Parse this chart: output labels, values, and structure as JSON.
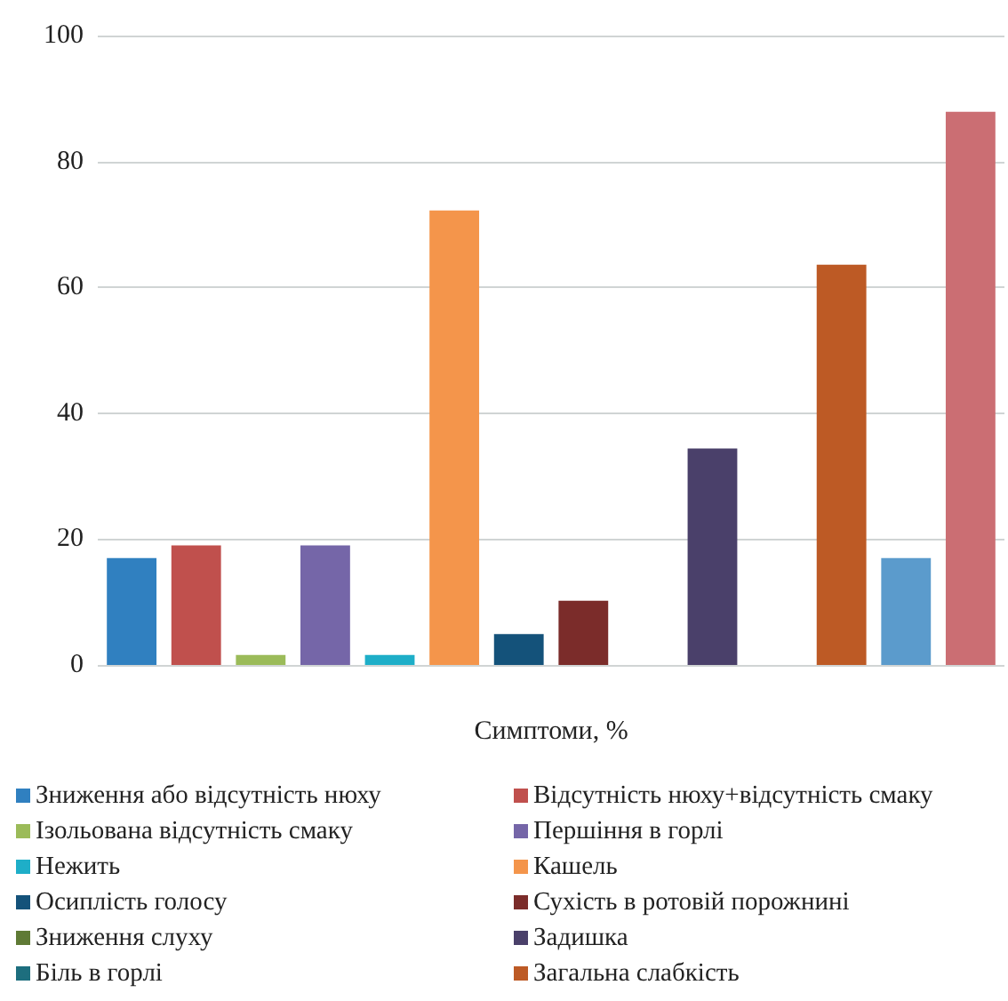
{
  "chart_data": {
    "type": "bar",
    "xlabel": "Симптоми, %",
    "categories": [
      null
    ],
    "ylim": [
      0,
      100
    ],
    "yticks": [
      0,
      20,
      40,
      60,
      80,
      100
    ],
    "grid": "y",
    "legend": "bottom",
    "series": [
      {
        "name": "Зниження або відсутність нюху",
        "color": "#3080c0",
        "values": [
          17
        ]
      },
      {
        "name": "Відсутність нюху+відсутність смаку",
        "color": "#c0504d",
        "values": [
          19
        ]
      },
      {
        "name": "Ізольована відсутність смаку",
        "color": "#9bbb59",
        "values": [
          1.6
        ]
      },
      {
        "name": "Першіння в горлі",
        "color": "#7566a8",
        "values": [
          19
        ]
      },
      {
        "name": "Нежить",
        "color": "#1eaec8",
        "values": [
          1.6
        ]
      },
      {
        "name": "Кашель",
        "color": "#f4954b",
        "values": [
          72.2
        ]
      },
      {
        "name": "Осиплість голосу",
        "color": "#14527a",
        "values": [
          4.9
        ]
      },
      {
        "name": "Сухість в ротовій порожнині",
        "color": "#7b2c2a",
        "values": [
          10.2
        ]
      },
      {
        "name": "Зниження слуху",
        "color": "#5f7a35",
        "values": [
          0
        ]
      },
      {
        "name": "Задишка",
        "color": "#4a406a",
        "values": [
          34.4
        ]
      },
      {
        "name": "Біль в горлі",
        "color": "#1d6e7e",
        "values": [
          0
        ]
      },
      {
        "name": "Загальна слабкість",
        "color": "#bd5a25",
        "values": [
          63.6
        ]
      },
      {
        "color": "#5b9bcc",
        "values": [
          17
        ]
      },
      {
        "color": "#cb6e73",
        "values": [
          87.9
        ]
      }
    ]
  }
}
